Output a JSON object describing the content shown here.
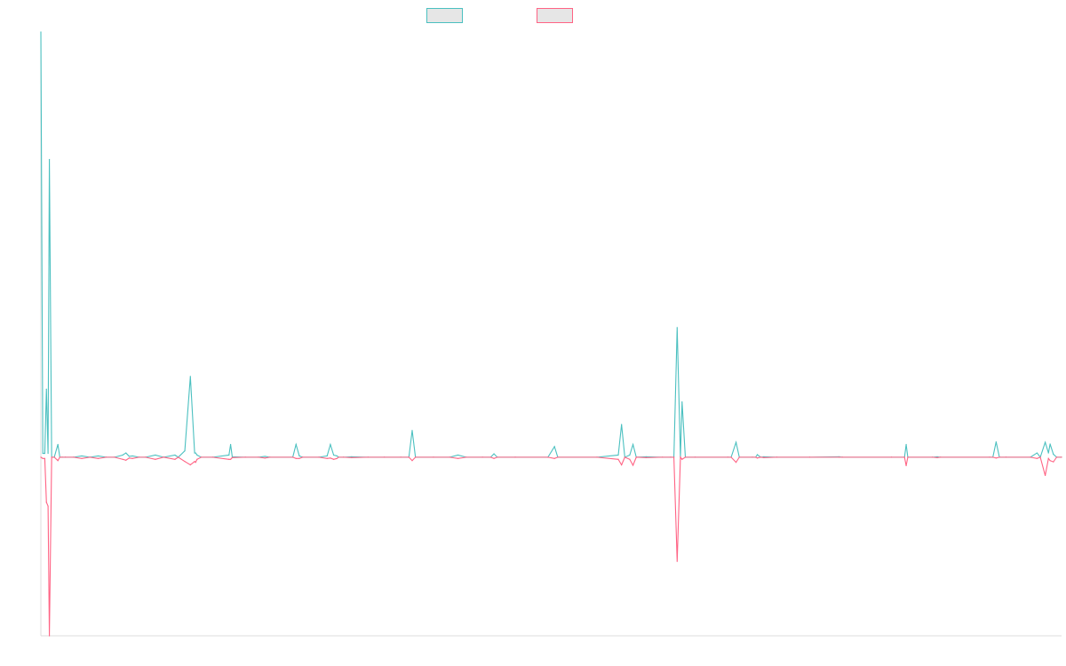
{
  "chart_data": {
    "type": "line",
    "title": "",
    "xlabel": "",
    "ylabel": "",
    "grid": false,
    "legend_position": "top-center",
    "colors": {
      "teal": "#4bc0c0",
      "pink": "#ff6384",
      "axis": "#dcdcdc",
      "legend_fill": "#e6e6e6"
    },
    "series": [
      {
        "color": "teal",
        "points": [
          [
            0,
            100
          ],
          [
            1.2,
            0.9
          ],
          [
            2.4,
            0.9
          ],
          [
            3.4,
            16
          ],
          [
            4.4,
            0.9
          ],
          [
            5.2,
            70
          ],
          [
            6.6,
            0
          ],
          [
            8.2,
            0
          ],
          [
            10.4,
            3
          ],
          [
            11.6,
            0
          ],
          [
            13,
            0
          ],
          [
            15,
            0
          ],
          [
            20,
            0
          ],
          [
            25,
            0.3
          ],
          [
            30,
            0
          ],
          [
            35,
            0.3
          ],
          [
            40,
            0
          ],
          [
            45,
            0
          ],
          [
            50,
            0.5
          ],
          [
            52,
            1
          ],
          [
            54,
            0.2
          ],
          [
            56,
            0.3
          ],
          [
            60,
            0
          ],
          [
            64,
            0
          ],
          [
            70,
            0.5
          ],
          [
            75,
            0
          ],
          [
            82,
            0.5
          ],
          [
            84,
            0
          ],
          [
            88,
            1.5
          ],
          [
            91.4,
            19
          ],
          [
            94,
            1
          ],
          [
            94.6,
            1
          ],
          [
            95.5,
            0.5
          ],
          [
            98,
            0
          ],
          [
            105,
            0
          ],
          [
            115,
            0.5
          ],
          [
            116,
            3
          ],
          [
            117,
            0.1
          ],
          [
            125,
            0
          ],
          [
            133,
            0
          ],
          [
            137,
            0.2
          ],
          [
            140,
            0
          ],
          [
            154,
            0
          ],
          [
            156,
            3
          ],
          [
            158,
            0.3
          ],
          [
            160,
            0
          ],
          [
            170,
            0
          ],
          [
            175,
            0.3
          ],
          [
            177,
            3
          ],
          [
            179,
            0.5
          ],
          [
            181,
            0.3
          ],
          [
            182,
            0
          ],
          [
            185,
            0
          ],
          [
            190,
            0.1
          ],
          [
            200,
            0
          ],
          [
            210,
            0
          ],
          [
            220,
            0
          ],
          [
            225,
            0
          ],
          [
            227,
            6.3
          ],
          [
            229,
            0
          ],
          [
            240,
            0
          ],
          [
            250,
            0
          ],
          [
            255,
            0.5
          ],
          [
            260,
            0
          ],
          [
            270,
            0
          ],
          [
            275,
            0
          ],
          [
            277,
            0.8
          ],
          [
            279,
            0
          ],
          [
            290,
            0
          ],
          [
            310,
            0
          ],
          [
            314,
            2.5
          ],
          [
            316,
            0
          ],
          [
            340,
            0
          ],
          [
            353,
            0.5
          ],
          [
            355,
            7.7
          ],
          [
            357,
            0
          ],
          [
            360,
            0.5
          ],
          [
            362,
            3
          ],
          [
            364,
            0
          ],
          [
            370,
            0.1
          ],
          [
            380,
            0
          ],
          [
            385,
            0
          ],
          [
            387,
            0
          ],
          [
            389,
            30.5
          ],
          [
            391,
            0
          ],
          [
            392,
            13
          ],
          [
            394,
            0
          ],
          [
            400,
            0
          ],
          [
            420,
            0
          ],
          [
            422,
            0
          ],
          [
            425,
            3.5
          ],
          [
            427,
            0
          ],
          [
            435,
            0
          ],
          [
            437,
            0
          ],
          [
            438,
            0.6
          ],
          [
            440,
            0
          ],
          [
            442,
            0.1
          ],
          [
            450,
            0
          ],
          [
            470,
            0
          ],
          [
            488,
            0.1
          ],
          [
            490,
            0
          ],
          [
            520,
            0
          ],
          [
            528,
            0
          ],
          [
            529,
            3
          ],
          [
            530,
            0
          ],
          [
            545,
            0
          ],
          [
            548,
            0.1
          ],
          [
            550,
            0
          ],
          [
            580,
            0
          ],
          [
            582,
            0
          ],
          [
            584,
            3.6
          ],
          [
            586,
            0
          ],
          [
            590,
            0
          ],
          [
            605,
            0
          ],
          [
            609,
            1
          ],
          [
            611,
            0
          ],
          [
            614,
            3.5
          ],
          [
            616,
            1
          ],
          [
            617,
            3.1
          ],
          [
            619,
            0.7
          ],
          [
            621,
            0
          ],
          [
            624,
            0
          ]
        ]
      },
      {
        "color": "pink",
        "points": [
          [
            0,
            0
          ],
          [
            1.2,
            -0.3
          ],
          [
            2.4,
            -0.3
          ],
          [
            3.4,
            -10.6
          ],
          [
            4.4,
            -11.5
          ],
          [
            5.2,
            -42
          ],
          [
            6.6,
            0
          ],
          [
            8.2,
            0
          ],
          [
            10.4,
            -0.8
          ],
          [
            11.6,
            0
          ],
          [
            13,
            0
          ],
          [
            15,
            0
          ],
          [
            20,
            0
          ],
          [
            25,
            -0.3
          ],
          [
            30,
            0
          ],
          [
            35,
            -0.3
          ],
          [
            40,
            0
          ],
          [
            45,
            0
          ],
          [
            50,
            -0.5
          ],
          [
            52,
            -0.7
          ],
          [
            54,
            -0.2
          ],
          [
            56,
            -0.3
          ],
          [
            60,
            0
          ],
          [
            64,
            0
          ],
          [
            70,
            -0.5
          ],
          [
            75,
            0
          ],
          [
            82,
            -0.5
          ],
          [
            84,
            0
          ],
          [
            88,
            -1
          ],
          [
            91.4,
            -1.8
          ],
          [
            94,
            -1
          ],
          [
            94.6,
            -1.2
          ],
          [
            95.5,
            -0.5
          ],
          [
            98,
            0
          ],
          [
            105,
            0
          ],
          [
            115,
            -0.5
          ],
          [
            116,
            -0.5
          ],
          [
            117,
            -0.1
          ],
          [
            125,
            0
          ],
          [
            133,
            0
          ],
          [
            137,
            -0.2
          ],
          [
            140,
            0
          ],
          [
            154,
            0
          ],
          [
            156,
            -0.3
          ],
          [
            158,
            -0.3
          ],
          [
            160,
            0
          ],
          [
            170,
            0
          ],
          [
            175,
            -0.3
          ],
          [
            177,
            -0.2
          ],
          [
            179,
            -0.5
          ],
          [
            181,
            -0.3
          ],
          [
            182,
            0
          ],
          [
            185,
            0
          ],
          [
            190,
            -0.1
          ],
          [
            200,
            0
          ],
          [
            210,
            0
          ],
          [
            220,
            0
          ],
          [
            225,
            0
          ],
          [
            227,
            -0.8
          ],
          [
            229,
            0
          ],
          [
            240,
            0
          ],
          [
            250,
            0
          ],
          [
            255,
            -0.3
          ],
          [
            260,
            0
          ],
          [
            270,
            0
          ],
          [
            275,
            0
          ],
          [
            277,
            -0.3
          ],
          [
            279,
            0
          ],
          [
            290,
            0
          ],
          [
            310,
            0
          ],
          [
            314,
            -0.3
          ],
          [
            316,
            0
          ],
          [
            340,
            0
          ],
          [
            353,
            -0.5
          ],
          [
            355,
            -1.8
          ],
          [
            357,
            0
          ],
          [
            360,
            -0.5
          ],
          [
            362,
            -1.9
          ],
          [
            364,
            0
          ],
          [
            370,
            -0.1
          ],
          [
            380,
            0
          ],
          [
            385,
            0
          ],
          [
            387,
            0
          ],
          [
            389,
            -24.5
          ],
          [
            391,
            0
          ],
          [
            392,
            -0.5
          ],
          [
            394,
            0
          ],
          [
            400,
            0
          ],
          [
            420,
            0
          ],
          [
            422,
            0
          ],
          [
            425,
            -1.2
          ],
          [
            427,
            0
          ],
          [
            435,
            0
          ],
          [
            437,
            0
          ],
          [
            438,
            -0.2
          ],
          [
            440,
            0
          ],
          [
            442,
            -0.1
          ],
          [
            450,
            0
          ],
          [
            470,
            0
          ],
          [
            488,
            0
          ],
          [
            490,
            0
          ],
          [
            520,
            0
          ],
          [
            528,
            0
          ],
          [
            529,
            -2
          ],
          [
            530,
            0
          ],
          [
            545,
            0
          ],
          [
            548,
            -0.1
          ],
          [
            550,
            0
          ],
          [
            580,
            0
          ],
          [
            582,
            0
          ],
          [
            584,
            -0.2
          ],
          [
            586,
            0
          ],
          [
            590,
            0
          ],
          [
            605,
            0
          ],
          [
            609,
            -0.3
          ],
          [
            611,
            0
          ],
          [
            614,
            -4.3
          ],
          [
            616,
            -0.3
          ],
          [
            617,
            -0.8
          ],
          [
            619,
            -1.1
          ],
          [
            621,
            0
          ],
          [
            624,
            0
          ]
        ]
      }
    ],
    "xlim": [
      0,
      624
    ],
    "ylim": [
      -42,
      100
    ]
  }
}
